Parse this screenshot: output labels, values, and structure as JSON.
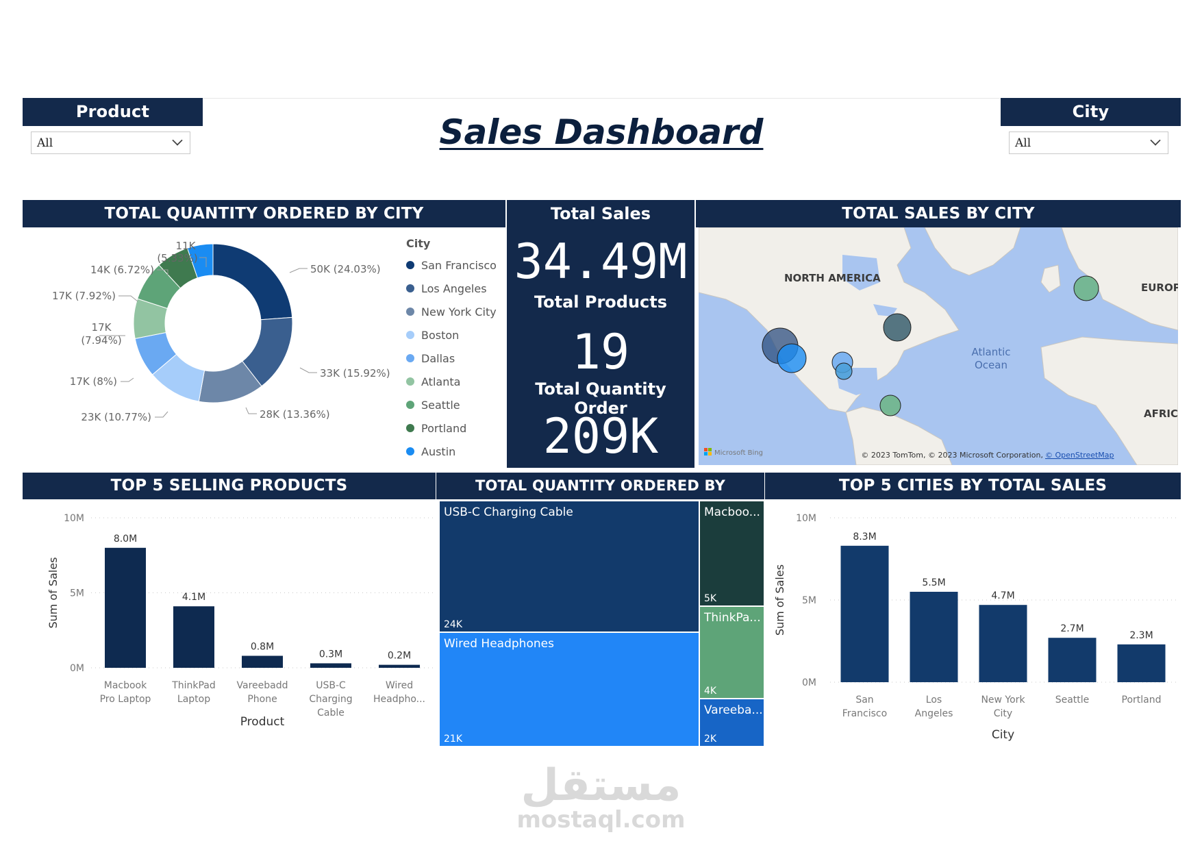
{
  "title": "Sales Dashboard",
  "slicers": {
    "product": {
      "label": "Product",
      "value": "All"
    },
    "city": {
      "label": "City",
      "value": "All"
    }
  },
  "donut": {
    "header": "TOTAL QUANTITY ORDERED BY CITY",
    "legend_title": "City",
    "labels": {
      "sf": "50K (24.03%)",
      "la": "33K (15.92%)",
      "nyc": "28K (13.36%)",
      "boston": "23K (10.77%)",
      "dallas": "17K (8%)",
      "atlanta_1": "17K",
      "atlanta_2": "(7.94%)",
      "seattle": "17K (7.92%)",
      "portland": "14K (6.72%)",
      "austin_1": "11K",
      "austin_2": "(5.33%)"
    }
  },
  "kpi": {
    "total_sales_label": "Total Sales",
    "total_sales_value": "34.49M",
    "total_products_label": "Total Products",
    "total_products_value": "19",
    "total_quantity_label": "Total Quantity Order",
    "total_quantity_value": "209K"
  },
  "map": {
    "header": "TOTAL SALES BY CITY",
    "labels": {
      "north_america": "NORTH AMERICA",
      "europe": "EUROPE",
      "africa": "AFRICA",
      "ocean_1": "Atlantic",
      "ocean_2": "Ocean"
    },
    "attribution": "© 2023 TomTom, © 2023 Microsoft Corporation,",
    "attribution_link": "© OpenStreetMap",
    "bing": "Microsoft Bing",
    "colors": {
      "land": "#f1efea",
      "water": "#a9c5f0"
    }
  },
  "bar_products": {
    "header": "TOP 5 SELLING PRODUCTS",
    "wrapped_ticks": [
      [
        "Macbook",
        "Pro Laptop"
      ],
      [
        "ThinkPad",
        "Laptop"
      ],
      [
        "Vareebadd",
        "Phone"
      ],
      [
        "USB-C",
        "Charging",
        "Cable"
      ],
      [
        "Wired",
        "Headpho..."
      ]
    ]
  },
  "treemap": {
    "header": "TOTAL QUANTITY ORDERED BY PRODUCT",
    "cells": {
      "usbc": {
        "name": "USB-C Charging Cable",
        "value": "24K"
      },
      "wired": {
        "name": "Wired Headphones",
        "value": "21K"
      },
      "macbook": {
        "name": "Macboo...",
        "value": "5K"
      },
      "thinkpad": {
        "name": "ThinkPa...",
        "value": "4K"
      },
      "vareebadd": {
        "name": "Vareeba...",
        "value": "2K"
      }
    }
  },
  "bar_cities": {
    "header": "TOP 5 CITIES BY TOTAL SALES",
    "wrapped_ticks": [
      [
        "San",
        "Francisco"
      ],
      [
        "Los",
        "Angeles"
      ],
      [
        "New York",
        "City"
      ],
      [
        "Seattle"
      ],
      [
        "Portland"
      ]
    ]
  },
  "watermark": {
    "arabic": "مستقل",
    "latin": "mostaql.com"
  },
  "chart_data": [
    {
      "type": "pie",
      "title": "TOTAL QUANTITY ORDERED BY CITY",
      "legend_title": "City",
      "categories": [
        "San Francisco",
        "Los Angeles",
        "New York City",
        "Boston",
        "Dallas",
        "Atlanta",
        "Seattle",
        "Portland",
        "Austin"
      ],
      "values": [
        50000,
        33000,
        28000,
        23000,
        17000,
        17000,
        17000,
        14000,
        11000
      ],
      "percents": [
        24.03,
        15.92,
        13.36,
        10.77,
        8.0,
        7.94,
        7.92,
        6.72,
        5.33
      ],
      "colors": [
        "#0f3b73",
        "#3a5f8f",
        "#6d87a8",
        "#a6cdfa",
        "#6aa9f2",
        "#92c4a2",
        "#5ea478",
        "#3f7a4f",
        "#1a8cf2"
      ],
      "legend": "right"
    },
    {
      "type": "bar",
      "title": "TOP 5 SELLING PRODUCTS",
      "categories": [
        "Macbook Pro Laptop",
        "ThinkPad Laptop",
        "Vareebadd Phone",
        "USB-C Charging Cable",
        "Wired Headphones"
      ],
      "values": [
        8.0,
        4.1,
        0.8,
        0.3,
        0.2
      ],
      "value_labels": [
        "8.0M",
        "4.1M",
        "0.8M",
        "0.3M",
        "0.2M"
      ],
      "xlabel": "Product",
      "ylabel": "Sum of Sales",
      "yticks": [
        "0M",
        "5M",
        "10M"
      ],
      "ylim": [
        0,
        10
      ],
      "color": "#0e2a50"
    },
    {
      "type": "treemap",
      "title": "TOTAL QUANTITY ORDERED BY PRODUCT",
      "categories": [
        "USB-C Charging Cable",
        "Wired Headphones",
        "Macbook Pro Laptop",
        "ThinkPad Laptop",
        "Vareebadd Phone"
      ],
      "values": [
        24000,
        21000,
        5000,
        4000,
        2000
      ],
      "colors": [
        "#123a6b",
        "#2186f7",
        "#1b3d3c",
        "#5ea478",
        "#1765c6"
      ]
    },
    {
      "type": "bar",
      "title": "TOP 5 CITIES BY TOTAL SALES",
      "categories": [
        "San Francisco",
        "Los Angeles",
        "New York City",
        "Seattle",
        "Portland"
      ],
      "values": [
        8.3,
        5.5,
        4.7,
        2.7,
        2.3
      ],
      "value_labels": [
        "8.3M",
        "5.5M",
        "4.7M",
        "2.7M",
        "2.3M"
      ],
      "xlabel": "City",
      "ylabel": "Sum of Sales",
      "yticks": [
        "0M",
        "5M",
        "10M"
      ],
      "ylim": [
        0,
        10
      ],
      "color": "#123a6b"
    }
  ]
}
